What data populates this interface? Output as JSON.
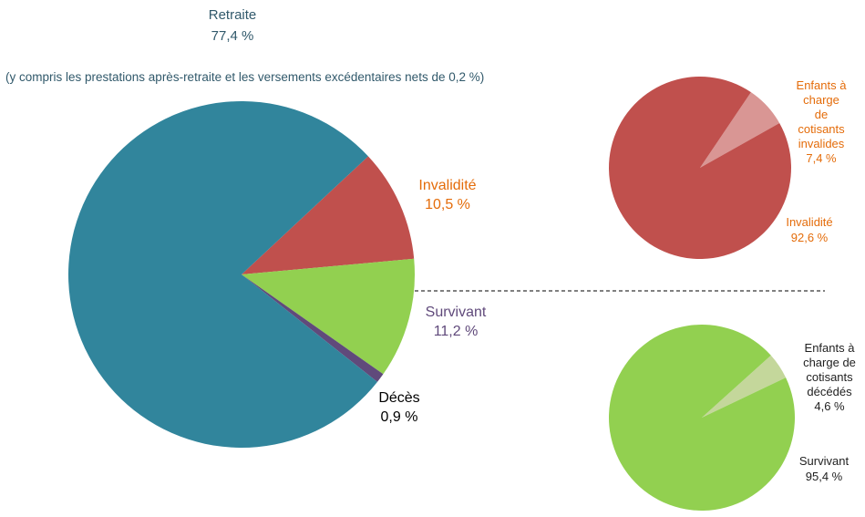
{
  "colors": {
    "retraite": "#31859C",
    "invalidite": "#C0504D",
    "invalidite_light": "#D99694",
    "survivant": "#92D050",
    "survivant_light": "#C4D79B",
    "deces": "#604A7B",
    "text_teal": "#31596B",
    "text_orange": "#E46C0A",
    "text_purple": "#604A7B",
    "text_black": "#000000"
  },
  "chart_data": [
    {
      "type": "pie",
      "name": "main",
      "slices": [
        {
          "key": "invalidite",
          "label": "Invalidité",
          "value_text": "10,5 %",
          "value": 10.5
        },
        {
          "key": "survivant",
          "label": "Survivant",
          "value_text": "11,2 %",
          "value": 11.2
        },
        {
          "key": "deces",
          "label": "Décès",
          "value_text": "0,9 %",
          "value": 0.9
        },
        {
          "key": "retraite",
          "label": "Retraite",
          "value_text": "77,4 %",
          "value": 77.4
        }
      ],
      "note": "(y compris les prestations  après-retraite  et les versements  excédentaires  nets de 0,2 %)"
    },
    {
      "type": "pie",
      "name": "invalidite-breakdown",
      "slices": [
        {
          "key": "enfants_invalides",
          "label": "Enfants à charge de cotisants invalides",
          "label_lines": [
            "Enfants à",
            "charge",
            "de",
            "cotisants",
            "invalides"
          ],
          "value_text": "7,4 %",
          "value": 7.4
        },
        {
          "key": "invalidite",
          "label": "Invalidité",
          "label_lines": [
            "Invalidité"
          ],
          "value_text": "92,6 %",
          "value": 92.6
        }
      ]
    },
    {
      "type": "pie",
      "name": "survivant-breakdown",
      "slices": [
        {
          "key": "enfants_decedes",
          "label": "Enfants à charge de cotisants décédés",
          "label_lines": [
            "Enfants à",
            "charge de",
            "cotisants",
            "décédés"
          ],
          "value_text": "4,6 %",
          "value": 4.6
        },
        {
          "key": "survivant",
          "label": "Survivant",
          "label_lines": [
            "Survivant"
          ],
          "value_text": "95,4 %",
          "value": 95.4
        }
      ]
    }
  ]
}
